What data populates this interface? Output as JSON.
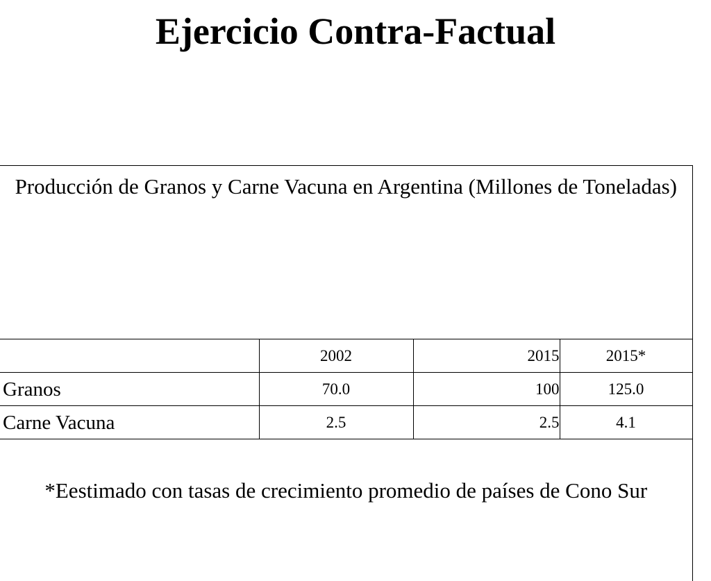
{
  "title": "Ejercicio Contra-Factual",
  "table": {
    "caption": "Producción de Granos y Carne Vacuna en Argentina (Millones de Toneladas)",
    "header": {
      "label": "",
      "col_2002": "2002",
      "col_2015": "2015",
      "col_2015_est": "2015*"
    },
    "rows": [
      {
        "label": "Granos",
        "v2002": "70.0",
        "v2015": "100",
        "v2015_est": "125.0"
      },
      {
        "label": "Carne Vacuna",
        "v2002": "2.5",
        "v2015": "2.5",
        "v2015_est": "4.1"
      }
    ],
    "footnote": "*Eestimado con tasas de crecimiento promedio de países de Cono Sur"
  }
}
